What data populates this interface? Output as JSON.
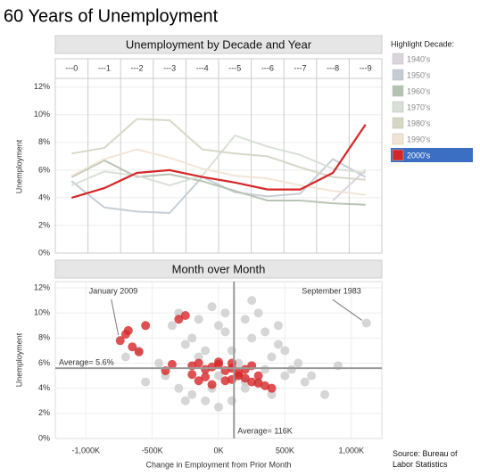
{
  "title": "60 Years of Unemployment",
  "legend_title": "Highlight Decade:",
  "source": "Source: Bureau of Labor Statistics",
  "chart_data": [
    {
      "type": "line",
      "title": "Unemployment by Decade and Year",
      "y_label": "Unemployment",
      "categories": [
        "---0",
        "---1",
        "---2",
        "---3",
        "---4",
        "---5",
        "---6",
        "---7",
        "---8",
        "---9"
      ],
      "series": [
        {
          "name": "1940's",
          "color": "#d9d3dc",
          "values": [
            null,
            null,
            null,
            null,
            null,
            null,
            null,
            null,
            3.8,
            6.0
          ]
        },
        {
          "name": "1950's",
          "color": "#c4cbd3",
          "values": [
            5.2,
            3.3,
            3.0,
            2.9,
            5.5,
            4.4,
            4.1,
            4.3,
            6.8,
            5.5
          ]
        },
        {
          "name": "1960's",
          "color": "#b4c2b0",
          "values": [
            5.5,
            6.7,
            5.5,
            5.7,
            5.2,
            4.5,
            3.8,
            3.8,
            3.6,
            3.5
          ]
        },
        {
          "name": "1970's",
          "color": "#d7dfd6",
          "values": [
            4.9,
            5.9,
            5.6,
            4.9,
            5.6,
            8.5,
            7.7,
            7.1,
            6.1,
            5.8
          ]
        },
        {
          "name": "1980's",
          "color": "#d6d6c5",
          "values": [
            7.2,
            7.6,
            9.7,
            9.6,
            7.5,
            7.2,
            7.0,
            6.2,
            5.5,
            5.3
          ]
        },
        {
          "name": "1990's",
          "color": "#f2e4d4",
          "values": [
            5.6,
            6.8,
            7.5,
            6.9,
            6.1,
            5.6,
            5.4,
            4.9,
            4.5,
            4.2
          ]
        },
        {
          "name": "2000's",
          "color": "#d62728",
          "highlight": true,
          "values": [
            4.0,
            4.7,
            5.8,
            6.0,
            5.5,
            5.1,
            4.6,
            4.6,
            5.8,
            9.3
          ]
        }
      ],
      "ylim": [
        0,
        12.5
      ],
      "yticks": [
        {
          "value": 0,
          "label": "0%"
        },
        {
          "value": 2,
          "label": "2%"
        },
        {
          "value": 4,
          "label": "4%"
        },
        {
          "value": 6,
          "label": "6%"
        },
        {
          "value": 8,
          "label": "8%"
        },
        {
          "value": 10,
          "label": "10%"
        },
        {
          "value": 12,
          "label": "12%"
        }
      ],
      "grid": true
    },
    {
      "type": "scatter",
      "title": "Month over Month",
      "x_label": "Change in Employment from Prior Month",
      "y_label": "Unemployment",
      "series": [
        {
          "color": "#cccccc",
          "x": [
            -550,
            -450,
            -400,
            -350,
            -300,
            -250,
            -200,
            -150,
            -100,
            -50,
            0,
            50,
            100,
            150,
            200,
            250,
            300,
            350,
            400,
            450,
            500,
            550,
            600,
            700,
            800,
            -300,
            -200,
            -100,
            0,
            100,
            200,
            300,
            400,
            500,
            -150,
            50,
            250,
            450,
            650,
            -50,
            150,
            350,
            -250,
            0,
            200,
            -600,
            -700,
            900,
            1114
          ],
          "y": [
            4.5,
            6.0,
            5.0,
            9.0,
            10.0,
            7.5,
            8.0,
            6.5,
            7.0,
            10.5,
            9.0,
            8.5,
            7.0,
            6.0,
            9.5,
            8.0,
            10.0,
            8.5,
            6.5,
            7.5,
            7.0,
            5.5,
            6.0,
            5.0,
            3.5,
            4.0,
            3.5,
            3.0,
            2.5,
            3.0,
            4.0,
            4.5,
            3.5,
            5.0,
            9.5,
            10.0,
            11.0,
            9.0,
            4.5,
            4.0,
            5.0,
            5.5,
            3.0,
            5.0,
            4.5,
            7.0,
            6.5,
            5.8,
            9.2
          ]
        },
        {
          "color": "#d62728",
          "x": [
            -741,
            -700,
            -650,
            -600,
            -680,
            -550,
            -300,
            -250,
            -200,
            -150,
            -100,
            -50,
            0,
            50,
            100,
            150,
            200,
            250,
            300,
            350,
            400,
            -150,
            -50,
            50,
            150,
            250,
            -100,
            0,
            100,
            200,
            300,
            -400,
            -350,
            -200,
            100
          ],
          "y": [
            7.8,
            8.3,
            7.3,
            6.9,
            8.6,
            9.0,
            9.5,
            9.8,
            5.8,
            6.0,
            5.5,
            5.7,
            5.9,
            5.4,
            5.6,
            5.0,
            4.8,
            4.5,
            4.4,
            4.2,
            4.0,
            4.6,
            4.3,
            4.6,
            5.2,
            5.8,
            4.9,
            6.1,
            6.0,
            5.5,
            5.0,
            5.4,
            5.9,
            5.1,
            4.7
          ]
        }
      ],
      "xlim": [
        -1230,
        1230
      ],
      "xticks": [
        {
          "value": -1000,
          "label": "-1,000K"
        },
        {
          "value": -500,
          "label": "-500K"
        },
        {
          "value": 0,
          "label": "0K"
        },
        {
          "value": 500,
          "label": "500K"
        },
        {
          "value": 1000,
          "label": "1,000K"
        }
      ],
      "ylim": [
        0,
        12.5
      ],
      "yticks": [
        {
          "value": 0,
          "label": "0%"
        },
        {
          "value": 2,
          "label": "2%"
        },
        {
          "value": 4,
          "label": "4%"
        },
        {
          "value": 6,
          "label": "6%"
        },
        {
          "value": 8,
          "label": "8%"
        },
        {
          "value": 10,
          "label": "10%"
        },
        {
          "value": 12,
          "label": "12%"
        }
      ],
      "averages": [
        {
          "axis": "y",
          "value": 5.6,
          "label": "Average= 5.6%"
        },
        {
          "axis": "x",
          "value": 116,
          "label": "Average= 116K"
        }
      ],
      "annotations": [
        {
          "text": "January 2009",
          "x": -741,
          "y": 7.8,
          "side": "left"
        },
        {
          "text": "September 1983",
          "x": 1114,
          "y": 9.2,
          "side": "right"
        }
      ],
      "grid": true
    }
  ]
}
